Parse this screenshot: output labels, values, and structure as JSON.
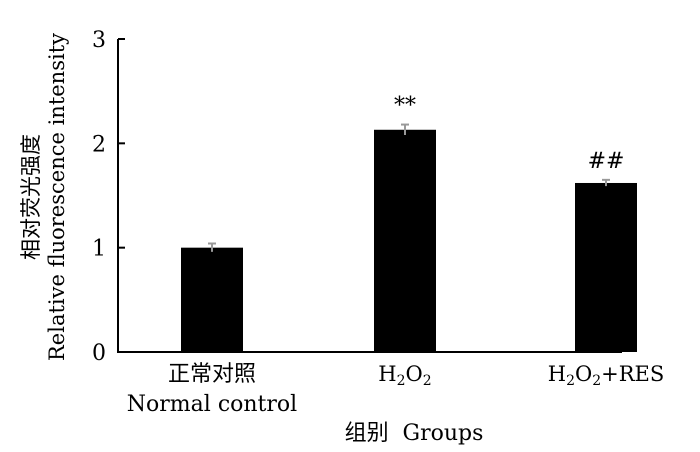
{
  "chart_data": {
    "type": "bar",
    "categories": [
      {
        "line1": "正常对照",
        "line2": "Normal control"
      },
      {
        "parts": [
          {
            "t": "H",
            "sub": false
          },
          {
            "t": "2",
            "sub": true
          },
          {
            "t": "O",
            "sub": false
          },
          {
            "t": "2",
            "sub": true
          }
        ]
      },
      {
        "parts": [
          {
            "t": "H",
            "sub": false
          },
          {
            "t": "2",
            "sub": true
          },
          {
            "t": "O",
            "sub": false
          },
          {
            "t": "2",
            "sub": true
          },
          {
            "t": "+RES",
            "sub": false
          }
        ]
      }
    ],
    "values": [
      1.0,
      2.13,
      1.62
    ],
    "errors": [
      0.04,
      0.05,
      0.03
    ],
    "annotations": [
      "",
      "**",
      "##"
    ],
    "ylabel_cn": "相对荧光强度",
    "ylabel_en": "Relative fluorescence intensity",
    "xlabel": "组别  Groups",
    "ylim": [
      0,
      3
    ],
    "yticks": [
      "0",
      "1",
      "2",
      "3"
    ],
    "grid": false,
    "bar_color": "#000000",
    "errorbar_color": "#999999"
  }
}
